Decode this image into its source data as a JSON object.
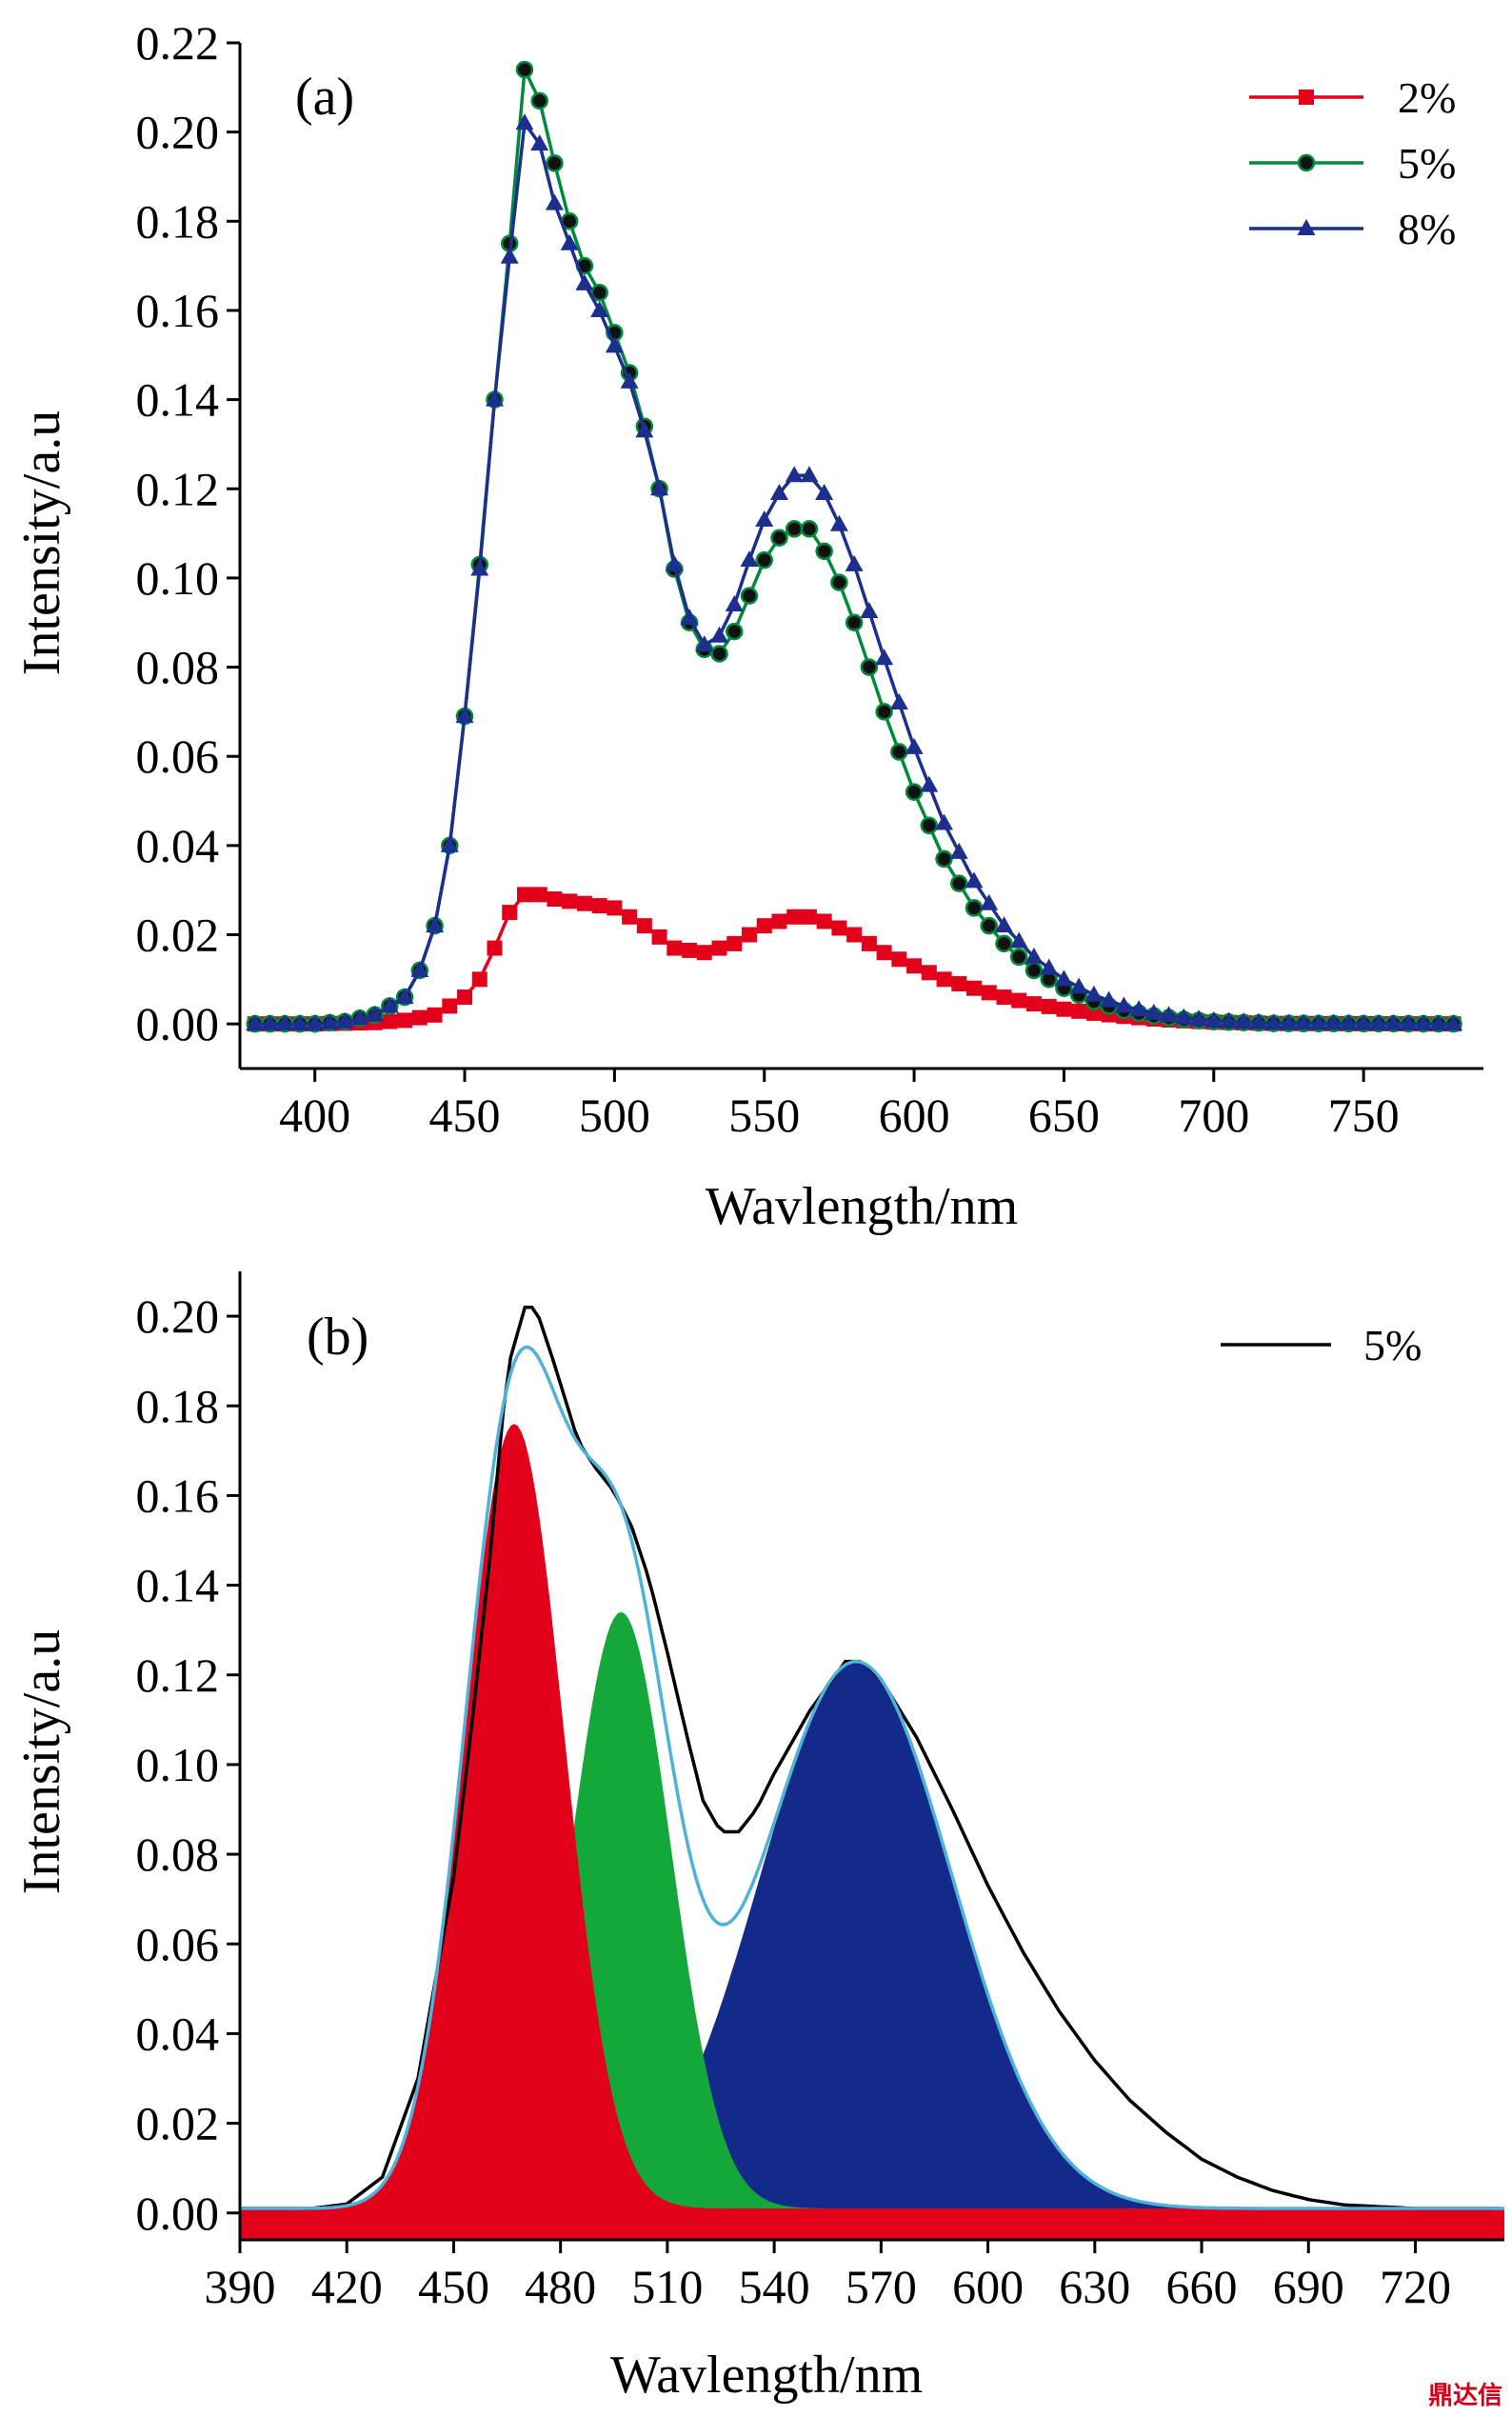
{
  "chart_data": [
    {
      "type": "line",
      "panel_label": "(a)",
      "xlabel": "Wavlength/nm",
      "ylabel": "Intensity/a.u",
      "xlim": [
        375,
        790
      ],
      "ylim": [
        -0.01,
        0.22
      ],
      "xticks": [
        400,
        450,
        500,
        550,
        600,
        650,
        700,
        750
      ],
      "yticks": [
        0.0,
        0.02,
        0.04,
        0.06,
        0.08,
        0.1,
        0.12,
        0.14,
        0.16,
        0.18,
        0.2,
        0.22
      ],
      "ytick_labels": [
        "0.00",
        "0.02",
        "0.04",
        "0.06",
        "0.08",
        "0.10",
        "0.12",
        "0.14",
        "0.16",
        "0.18",
        "0.20",
        "0.22"
      ],
      "legend_position": "top-right",
      "series": [
        {
          "name": "2%",
          "color": "#e3001b",
          "marker": "square",
          "points": [
            [
              380,
              0
            ],
            [
              400,
              0
            ],
            [
              420,
              0.0003
            ],
            [
              430,
              0.0008
            ],
            [
              440,
              0.002
            ],
            [
              450,
              0.006
            ],
            [
              455,
              0.01
            ],
            [
              460,
              0.017
            ],
            [
              465,
              0.025
            ],
            [
              470,
              0.029
            ],
            [
              475,
              0.029
            ],
            [
              480,
              0.028
            ],
            [
              490,
              0.027
            ],
            [
              500,
              0.026
            ],
            [
              510,
              0.022
            ],
            [
              520,
              0.017
            ],
            [
              530,
              0.016
            ],
            [
              540,
              0.018
            ],
            [
              550,
              0.022
            ],
            [
              560,
              0.024
            ],
            [
              565,
              0.024
            ],
            [
              570,
              0.023
            ],
            [
              580,
              0.02
            ],
            [
              590,
              0.016
            ],
            [
              600,
              0.013
            ],
            [
              610,
              0.01
            ],
            [
              620,
              0.008
            ],
            [
              630,
              0.006
            ],
            [
              640,
              0.0045
            ],
            [
              650,
              0.0033
            ],
            [
              660,
              0.0024
            ],
            [
              670,
              0.0017
            ],
            [
              680,
              0.0011
            ],
            [
              690,
              0.0007
            ],
            [
              700,
              0.0004
            ],
            [
              720,
              0.0001
            ],
            [
              780,
              0
            ]
          ]
        },
        {
          "name": "5%",
          "color": "#008a3c",
          "marker": "circle",
          "points": [
            [
              380,
              0
            ],
            [
              400,
              0
            ],
            [
              410,
              0.0005
            ],
            [
              420,
              0.002
            ],
            [
              430,
              0.006
            ],
            [
              435,
              0.012
            ],
            [
              440,
              0.022
            ],
            [
              445,
              0.04
            ],
            [
              450,
              0.069
            ],
            [
              455,
              0.103
            ],
            [
              460,
              0.14
            ],
            [
              465,
              0.175
            ],
            [
              468,
              0.2
            ],
            [
              470,
              0.214
            ],
            [
              473,
              0.213
            ],
            [
              476,
              0.204
            ],
            [
              480,
              0.193
            ],
            [
              485,
              0.18
            ],
            [
              490,
              0.17
            ],
            [
              495,
              0.164
            ],
            [
              500,
              0.155
            ],
            [
              505,
              0.146
            ],
            [
              510,
              0.134
            ],
            [
              515,
              0.12
            ],
            [
              520,
              0.102
            ],
            [
              525,
              0.09
            ],
            [
              530,
              0.084
            ],
            [
              535,
              0.083
            ],
            [
              540,
              0.088
            ],
            [
              545,
              0.096
            ],
            [
              550,
              0.104
            ],
            [
              555,
              0.109
            ],
            [
              560,
              0.111
            ],
            [
              565,
              0.111
            ],
            [
              570,
              0.106
            ],
            [
              575,
              0.099
            ],
            [
              580,
              0.09
            ],
            [
              590,
              0.07
            ],
            [
              600,
              0.052
            ],
            [
              610,
              0.037
            ],
            [
              620,
              0.026
            ],
            [
              630,
              0.018
            ],
            [
              640,
              0.012
            ],
            [
              650,
              0.008
            ],
            [
              660,
              0.005
            ],
            [
              670,
              0.003
            ],
            [
              680,
              0.0018
            ],
            [
              690,
              0.001
            ],
            [
              700,
              0.0005
            ],
            [
              720,
              0.0001
            ],
            [
              780,
              0
            ]
          ]
        },
        {
          "name": "8%",
          "color": "#1c2f8f",
          "marker": "triangle",
          "points": [
            [
              380,
              0
            ],
            [
              400,
              0
            ],
            [
              410,
              0.0005
            ],
            [
              420,
              0.002
            ],
            [
              430,
              0.006
            ],
            [
              435,
              0.012
            ],
            [
              440,
              0.022
            ],
            [
              445,
              0.04
            ],
            [
              450,
              0.069
            ],
            [
              455,
              0.102
            ],
            [
              460,
              0.14
            ],
            [
              465,
              0.172
            ],
            [
              468,
              0.192
            ],
            [
              470,
              0.202
            ],
            [
              473,
              0.202
            ],
            [
              476,
              0.195
            ],
            [
              480,
              0.184
            ],
            [
              485,
              0.175
            ],
            [
              490,
              0.166
            ],
            [
              495,
              0.16
            ],
            [
              500,
              0.152
            ],
            [
              505,
              0.144
            ],
            [
              510,
              0.133
            ],
            [
              515,
              0.12
            ],
            [
              520,
              0.103
            ],
            [
              525,
              0.091
            ],
            [
              530,
              0.085
            ],
            [
              535,
              0.087
            ],
            [
              540,
              0.094
            ],
            [
              545,
              0.104
            ],
            [
              550,
              0.113
            ],
            [
              555,
              0.119
            ],
            [
              560,
              0.123
            ],
            [
              565,
              0.123
            ],
            [
              570,
              0.119
            ],
            [
              575,
              0.112
            ],
            [
              580,
              0.103
            ],
            [
              590,
              0.082
            ],
            [
              600,
              0.062
            ],
            [
              610,
              0.045
            ],
            [
              620,
              0.032
            ],
            [
              630,
              0.022
            ],
            [
              640,
              0.015
            ],
            [
              650,
              0.01
            ],
            [
              660,
              0.0065
            ],
            [
              670,
              0.004
            ],
            [
              680,
              0.0024
            ],
            [
              690,
              0.0014
            ],
            [
              700,
              0.0007
            ],
            [
              720,
              0.0002
            ],
            [
              780,
              0
            ]
          ]
        }
      ]
    },
    {
      "type": "area",
      "panel_label": "(b)",
      "xlabel": "Wavlength/nm",
      "ylabel": "Intensity/a.u",
      "xlim": [
        390,
        745
      ],
      "ylim": [
        -0.006,
        0.21
      ],
      "xticks": [
        390,
        420,
        450,
        480,
        510,
        540,
        570,
        600,
        630,
        660,
        690,
        720
      ],
      "yticks": [
        0.0,
        0.02,
        0.04,
        0.06,
        0.08,
        0.1,
        0.12,
        0.14,
        0.16,
        0.18,
        0.2
      ],
      "ytick_labels": [
        "0.00",
        "0.02",
        "0.04",
        "0.06",
        "0.08",
        "0.10",
        "0.12",
        "0.14",
        "0.16",
        "0.18",
        "0.20"
      ],
      "legend_position": "top-right",
      "baseline": 0.001,
      "measured": {
        "name": "5%",
        "color": "#000000",
        "points": [
          [
            390,
            0.001
          ],
          [
            410,
            0.001
          ],
          [
            420,
            0.002
          ],
          [
            430,
            0.008
          ],
          [
            440,
            0.03
          ],
          [
            450,
            0.075
          ],
          [
            455,
            0.108
          ],
          [
            460,
            0.145
          ],
          [
            465,
            0.188
          ],
          [
            470,
            0.202
          ],
          [
            473,
            0.202
          ],
          [
            478,
            0.19
          ],
          [
            485,
            0.172
          ],
          [
            490,
            0.166
          ],
          [
            495,
            0.161
          ],
          [
            500,
            0.153
          ],
          [
            505,
            0.141
          ],
          [
            510,
            0.125
          ],
          [
            515,
            0.108
          ],
          [
            520,
            0.092
          ],
          [
            525,
            0.085
          ],
          [
            530,
            0.085
          ],
          [
            535,
            0.09
          ],
          [
            540,
            0.098
          ],
          [
            550,
            0.112
          ],
          [
            560,
            0.123
          ],
          [
            565,
            0.123
          ],
          [
            570,
            0.119
          ],
          [
            580,
            0.106
          ],
          [
            590,
            0.09
          ],
          [
            600,
            0.073
          ],
          [
            610,
            0.058
          ],
          [
            620,
            0.045
          ],
          [
            630,
            0.034
          ],
          [
            640,
            0.025
          ],
          [
            650,
            0.018
          ],
          [
            660,
            0.012
          ],
          [
            670,
            0.008
          ],
          [
            680,
            0.005
          ],
          [
            690,
            0.003
          ],
          [
            700,
            0.0018
          ],
          [
            720,
            0.001
          ],
          [
            745,
            0.001
          ]
        ]
      },
      "fit": {
        "color": "#4fb3d9",
        "peaks": [
          {
            "color": "#e3001b",
            "center": 467,
            "amplitude": 0.175,
            "sigma": 14
          },
          {
            "color": "#14a83b",
            "center": 497,
            "amplitude": 0.133,
            "sigma": 14
          },
          {
            "color": "#142a8a",
            "center": 563,
            "amplitude": 0.122,
            "sigma": 27
          }
        ]
      }
    }
  ],
  "watermark": "鼎达信"
}
